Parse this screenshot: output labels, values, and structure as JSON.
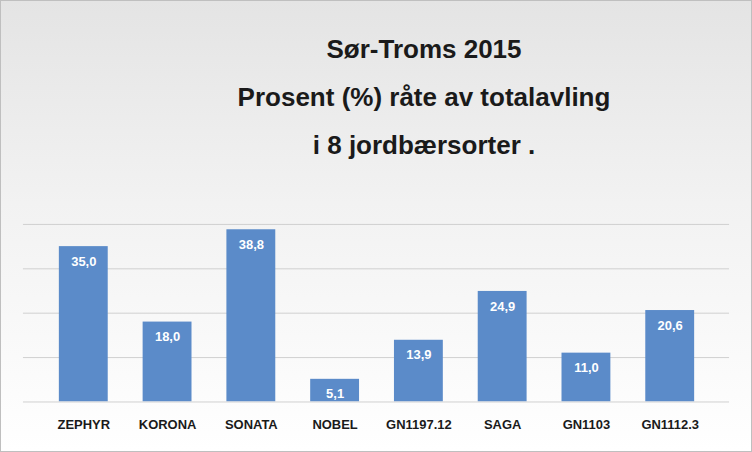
{
  "chart_data": {
    "type": "bar",
    "title": "Sør-Troms 2015\nProsent (%) råte av totalavling\ni 8 jordbærsorter .",
    "categories": [
      "ZEPHYR",
      "KORONA",
      "SONATA",
      "NOBEL",
      "GN1197.12",
      "SAGA",
      "GN1103",
      "GN1112.3"
    ],
    "values": [
      35.0,
      18.0,
      38.8,
      5.1,
      13.9,
      24.9,
      11.0,
      20.6
    ],
    "value_labels": [
      "35,0",
      "18,0",
      "38,8",
      "5,1",
      "13,9",
      "24,9",
      "11,0",
      "20,6"
    ],
    "color": "#5b8bc9",
    "ylim": [
      0,
      40
    ],
    "yticks": [
      0,
      10,
      20,
      30,
      40
    ],
    "grid": true,
    "data_labels": true,
    "tick_labels": "x"
  }
}
